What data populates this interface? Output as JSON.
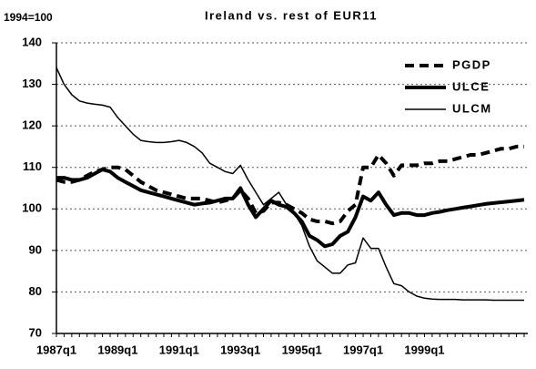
{
  "chart_data": {
    "type": "line",
    "title": "Ireland vs. rest of EUR11",
    "annotation": "1994=100",
    "categories": [
      "1987q1",
      null,
      null,
      null,
      null,
      null,
      null,
      null,
      "1989q1",
      null,
      null,
      null,
      null,
      null,
      null,
      null,
      "1991q1",
      null,
      null,
      null,
      null,
      null,
      null,
      null,
      "1993q1",
      null,
      null,
      null,
      null,
      null,
      null,
      null,
      "1995q1",
      null,
      null,
      null,
      null,
      null,
      null,
      null,
      "1997q1",
      null,
      null,
      null,
      null,
      null,
      null,
      null,
      "1999q1",
      null,
      null,
      null,
      null,
      null,
      null,
      null,
      null,
      null,
      null,
      null,
      null,
      null
    ],
    "series": [
      {
        "name": "PGDP",
        "color": "#000000",
        "line_style": "dashed",
        "line_width": 4,
        "values": [
          107,
          106.5,
          106.5,
          107,
          108,
          109,
          109.5,
          110,
          110,
          109.5,
          108,
          106.5,
          105.5,
          104.5,
          104,
          103.5,
          103,
          102.5,
          102.5,
          102.5,
          102,
          101.5,
          102,
          102.5,
          104.5,
          102.5,
          99,
          99.5,
          101.5,
          101.5,
          101,
          100,
          99,
          97.5,
          97,
          97,
          96.5,
          97,
          99.5,
          101,
          110,
          110,
          113,
          111,
          108,
          110.5,
          110.5,
          110.5,
          111,
          111,
          111.5,
          111.5,
          112,
          112.5,
          113,
          113,
          113.5,
          114,
          114.5,
          114.5,
          115,
          115
        ]
      },
      {
        "name": "ULCE",
        "color": "#000000",
        "line_style": "solid",
        "line_width": 4,
        "values": [
          107.5,
          107.5,
          107,
          107,
          107.5,
          108.5,
          109.5,
          109,
          107.5,
          106.5,
          105.5,
          104.5,
          104,
          103.5,
          103,
          102.5,
          102,
          101.5,
          101,
          101.3,
          101.5,
          102,
          102.5,
          102.5,
          105,
          101,
          98,
          100,
          102,
          101,
          100.5,
          99,
          97,
          93.5,
          92.5,
          91,
          91.5,
          93.5,
          94.5,
          98,
          103,
          102,
          104,
          101,
          98.5,
          99,
          99,
          98.5,
          98.5,
          99,
          99.3,
          99.7,
          100,
          100.3,
          100.6,
          100.9,
          101.2,
          101.4,
          101.6,
          101.8,
          102,
          102.2
        ]
      },
      {
        "name": "ULCM",
        "color": "#000000",
        "line_style": "solid",
        "line_width": 1.5,
        "values": [
          134,
          130,
          127.5,
          126,
          125.5,
          125.2,
          125,
          124.5,
          122,
          120,
          118,
          116.5,
          116.2,
          116,
          116,
          116.2,
          116.5,
          116,
          115,
          113.5,
          111,
          110,
          109,
          108.5,
          110.5,
          107,
          104,
          101,
          102.5,
          104,
          101,
          99,
          96,
          91,
          87.5,
          86,
          84.5,
          84.5,
          86.5,
          87,
          93,
          90.5,
          90.5,
          86,
          82,
          81.5,
          80,
          79,
          78.5,
          78.3,
          78.2,
          78.2,
          78.2,
          78.1,
          78.1,
          78.1,
          78.1,
          78,
          78,
          78,
          78,
          78
        ]
      }
    ],
    "ylim": [
      70,
      140
    ],
    "yticks": [
      70,
      80,
      90,
      100,
      110,
      120,
      130,
      140
    ],
    "grid": true,
    "legend": "upper right"
  }
}
